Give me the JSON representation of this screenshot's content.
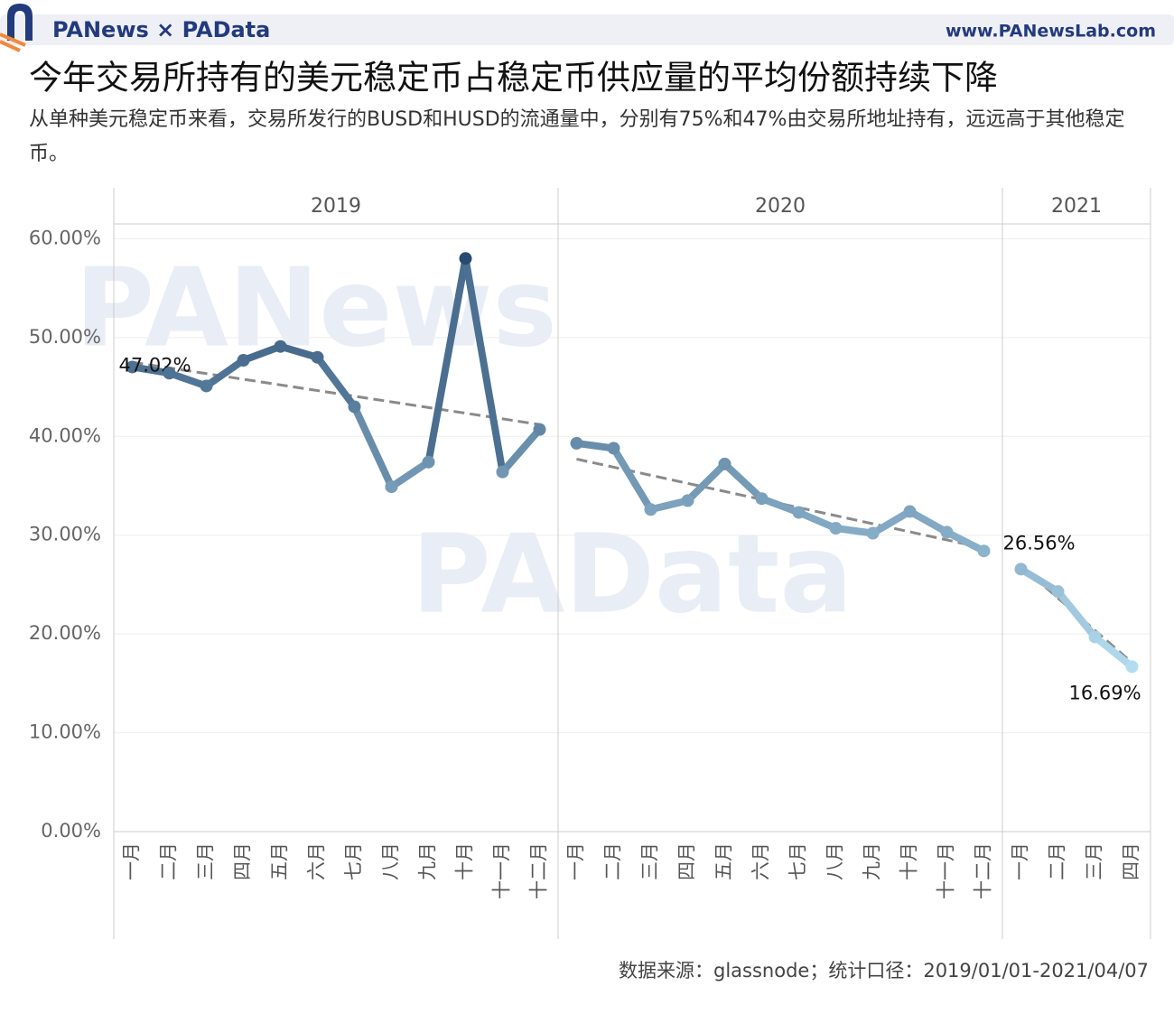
{
  "header": {
    "brand": "PANews × PAData",
    "url": "www.PANewsLab.com"
  },
  "chart_data": {
    "type": "line",
    "title": "今年交易所持有的美元稳定币占稳定币供应量的平均份额持续下降",
    "subtitle": "从单种美元稳定币来看，交易所发行的BUSD和HUSD的流通量中，分别有75%和47%由交易所地址持有，远远高于其他稳定币。",
    "source": "数据来源：glassnode；统计口径：2019/01/01-2021/04/07",
    "watermarks": [
      "PANews",
      "PAData"
    ],
    "ylim": [
      0,
      61.5
    ],
    "yticks": [
      {
        "value": 0,
        "label": "0.00%"
      },
      {
        "value": 10,
        "label": "10.00%"
      },
      {
        "value": 20,
        "label": "20.00%"
      },
      {
        "value": 30,
        "label": "30.00%"
      },
      {
        "value": 40,
        "label": "40.00%"
      },
      {
        "value": 50,
        "label": "50.00%"
      },
      {
        "value": 60,
        "label": "60.00%"
      }
    ],
    "grid": true,
    "color_scale": {
      "low": "#b3dcf0",
      "high": "#284a70"
    },
    "trend_color": "#8a8a8a",
    "panels": [
      {
        "year": "2019",
        "categories": [
          "一月",
          "二月",
          "三月",
          "四月",
          "五月",
          "六月",
          "七月",
          "八月",
          "九月",
          "十月",
          "十一月",
          "十二月"
        ],
        "values": [
          47.02,
          46.4,
          45.1,
          47.7,
          49.1,
          48.0,
          43.0,
          34.9,
          37.4,
          58.0,
          36.4,
          40.7
        ],
        "value_labels": [
          "47.02%",
          null,
          null,
          null,
          null,
          null,
          null,
          null,
          null,
          null,
          null,
          null
        ],
        "trend": [
          47.5,
          41.2
        ]
      },
      {
        "year": "2020",
        "categories": [
          "一月",
          "二月",
          "三月",
          "四月",
          "五月",
          "六月",
          "七月",
          "八月",
          "九月",
          "十月",
          "十一月",
          "十二月"
        ],
        "values": [
          39.3,
          38.8,
          32.6,
          33.5,
          37.2,
          33.7,
          32.3,
          30.7,
          30.2,
          32.4,
          30.3,
          28.4
        ],
        "value_labels": [
          null,
          null,
          null,
          null,
          null,
          null,
          null,
          null,
          null,
          null,
          null,
          null
        ],
        "trend": [
          37.7,
          28.7
        ]
      },
      {
        "year": "2021",
        "categories": [
          "一月",
          "二月",
          "三月",
          "四月"
        ],
        "values": [
          26.56,
          24.3,
          19.7,
          16.69
        ],
        "value_labels": [
          "26.56%",
          null,
          null,
          "16.69%"
        ],
        "trend": [
          26.9,
          17.1
        ]
      }
    ]
  }
}
